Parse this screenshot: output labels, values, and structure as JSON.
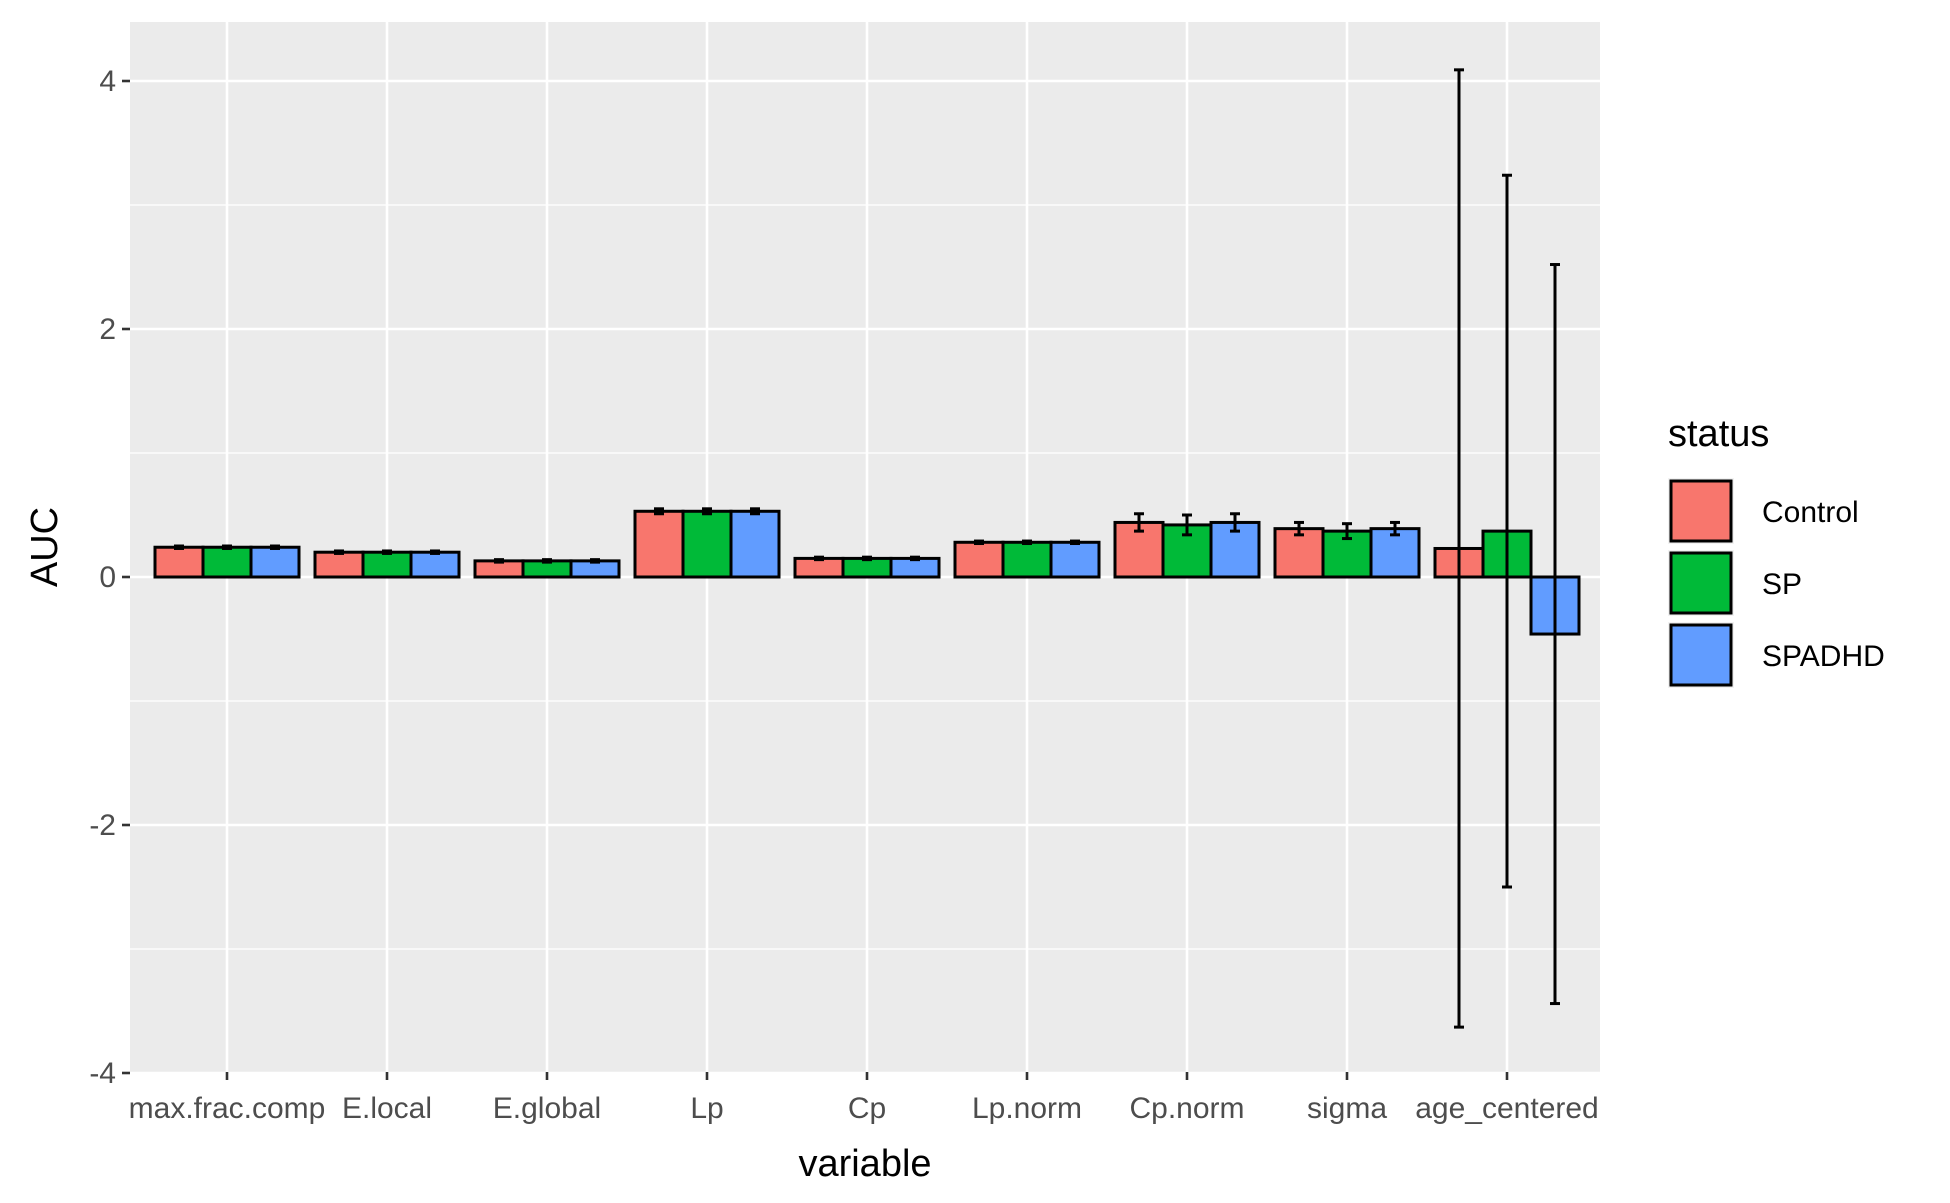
{
  "chart_data": {
    "type": "bar",
    "title": "",
    "xlabel": "variable",
    "ylabel": "AUC",
    "ylim": [
      -4,
      4.4
    ],
    "yticks": [
      -4,
      -2,
      0,
      2,
      4
    ],
    "ytick_labels": [
      "-4",
      "-2",
      "0",
      "2",
      "4"
    ],
    "grid": true,
    "legend_position": "right",
    "legend_title": "status",
    "categories": [
      "max.frac.comp",
      "E.local",
      "E.global",
      "Lp",
      "Cp",
      "Lp.norm",
      "Cp.norm",
      "sigma",
      "age_centered"
    ],
    "series": [
      {
        "name": "Control",
        "color": "#F8766D",
        "values": [
          0.24,
          0.2,
          0.13,
          0.53,
          0.15,
          0.28,
          0.44,
          0.39,
          0.23
        ],
        "errors": [
          0.01,
          0.01,
          0.01,
          0.02,
          0.01,
          0.01,
          0.07,
          0.05,
          3.86
        ]
      },
      {
        "name": "SP",
        "color": "#00BA38",
        "values": [
          0.24,
          0.2,
          0.13,
          0.53,
          0.15,
          0.28,
          0.42,
          0.37,
          0.37
        ],
        "errors": [
          0.01,
          0.01,
          0.01,
          0.02,
          0.01,
          0.01,
          0.08,
          0.06,
          2.87
        ]
      },
      {
        "name": "SPADHD",
        "color": "#619CFF",
        "values": [
          0.24,
          0.2,
          0.13,
          0.53,
          0.15,
          0.28,
          0.44,
          0.39,
          -0.46
        ],
        "errors": [
          0.01,
          0.01,
          0.01,
          0.02,
          0.01,
          0.01,
          0.07,
          0.05,
          2.98
        ]
      }
    ]
  }
}
